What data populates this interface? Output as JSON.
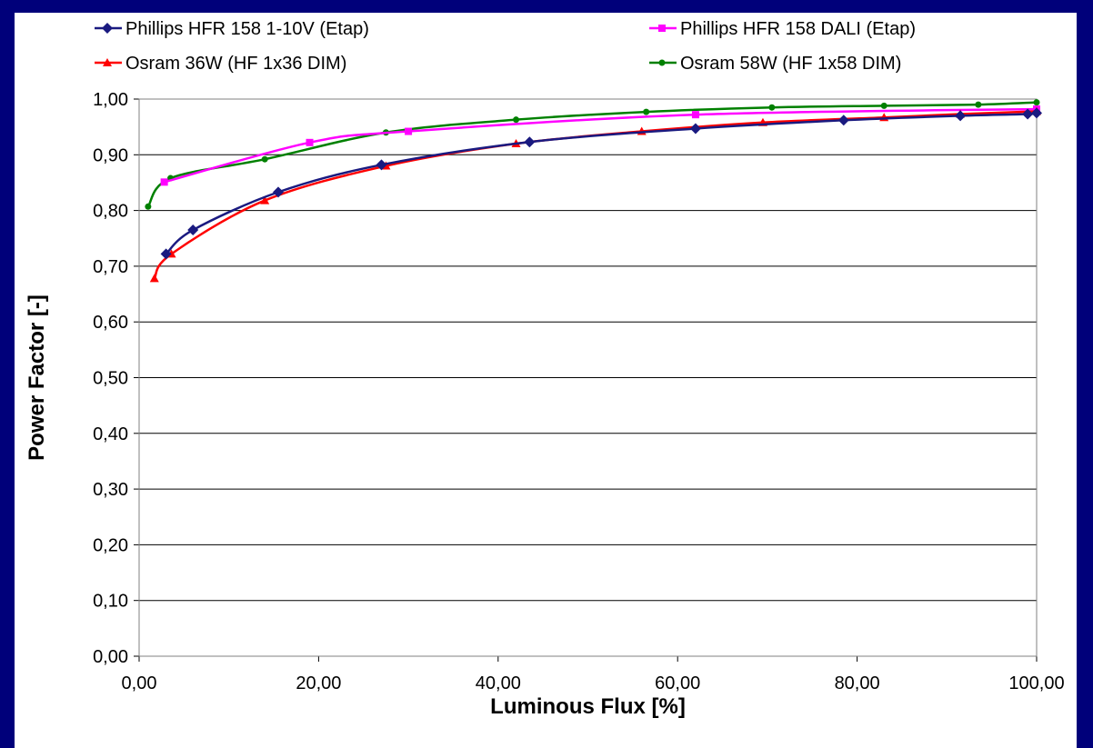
{
  "chart_data": {
    "type": "line",
    "title": "",
    "xlabel": "Luminous Flux [%]",
    "ylabel": "Power Factor [-]",
    "xlim": [
      0,
      100
    ],
    "ylim": [
      0,
      1
    ],
    "x_ticks": [
      0,
      20,
      40,
      60,
      80,
      100
    ],
    "y_ticks": [
      0,
      0.1,
      0.2,
      0.3,
      0.4,
      0.5,
      0.6,
      0.7,
      0.8,
      0.9,
      1.0
    ],
    "x_tick_labels": [
      "0,00",
      "20,00",
      "40,00",
      "60,00",
      "80,00",
      "100,00"
    ],
    "y_tick_labels": [
      "0,00",
      "0,10",
      "0,20",
      "0,30",
      "0,40",
      "0,50",
      "0,60",
      "0,70",
      "0,80",
      "0,90",
      "1,00"
    ],
    "grid": "horizontal",
    "legend_position": "top",
    "series": [
      {
        "name": "Phillips HFR 158 1-10V (Etap)",
        "color": "#1a1a80",
        "marker": "diamond",
        "x": [
          3.0,
          6.0,
          15.5,
          27.0,
          43.5,
          62.0,
          78.5,
          91.5,
          99.0,
          100.0
        ],
        "y": [
          0.722,
          0.765,
          0.833,
          0.882,
          0.923,
          0.947,
          0.962,
          0.97,
          0.973,
          0.975
        ]
      },
      {
        "name": "Phillips HFR 158 DALI (Etap)",
        "color": "#ff00ff",
        "marker": "square",
        "x": [
          2.8,
          19.0,
          30.0,
          62.0,
          100.0
        ],
        "y": [
          0.851,
          0.922,
          0.942,
          0.972,
          0.982
        ]
      },
      {
        "name": "Osram 36W (HF 1x36 DIM)",
        "color": "#ff0000",
        "marker": "triangle",
        "x": [
          1.7,
          3.6,
          14.0,
          27.5,
          42.0,
          56.0,
          69.5,
          83.0,
          91.5,
          100.0
        ],
        "y": [
          0.678,
          0.722,
          0.818,
          0.88,
          0.92,
          0.942,
          0.958,
          0.967,
          0.973,
          0.978
        ]
      },
      {
        "name": "Osram 58W (HF 1x58 DIM)",
        "color": "#008000",
        "marker": "circle",
        "x": [
          1.0,
          3.5,
          14.0,
          27.5,
          42.0,
          56.5,
          70.5,
          83.0,
          93.5,
          100.0
        ],
        "y": [
          0.807,
          0.858,
          0.892,
          0.94,
          0.963,
          0.977,
          0.985,
          0.988,
          0.99,
          0.994
        ]
      }
    ]
  }
}
